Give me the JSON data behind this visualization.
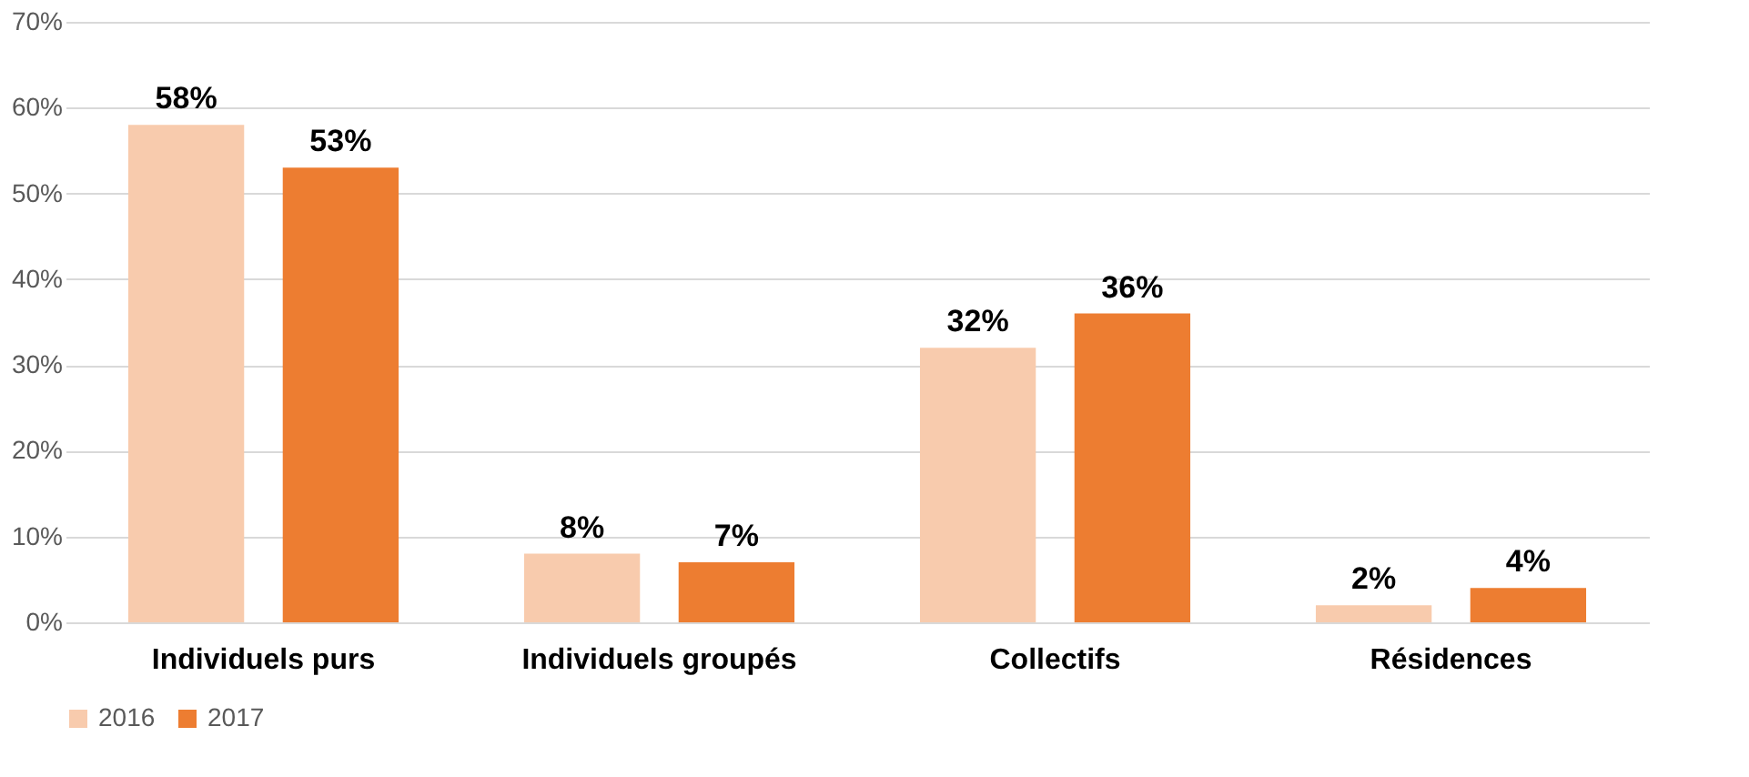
{
  "chart_data": {
    "type": "bar",
    "categories": [
      "Individuels purs",
      "Individuels groupés",
      "Collectifs",
      "Résidences"
    ],
    "series": [
      {
        "name": "2016",
        "color": "#f8cbad",
        "values": [
          58,
          8,
          32,
          2
        ]
      },
      {
        "name": "2017",
        "color": "#ed7d31",
        "values": [
          53,
          7,
          36,
          4
        ]
      }
    ],
    "ylim": [
      0,
      70
    ],
    "yticks": [
      {
        "value": 0,
        "label": "0%"
      },
      {
        "value": 10,
        "label": "10%"
      },
      {
        "value": 20,
        "label": "20%"
      },
      {
        "value": 30,
        "label": "30%"
      },
      {
        "value": 40,
        "label": "40%"
      },
      {
        "value": 50,
        "label": "50%"
      },
      {
        "value": 60,
        "label": "60%"
      },
      {
        "value": 70,
        "label": "70%"
      }
    ],
    "value_labels": [
      [
        "58%",
        "8%",
        "32%",
        "2%"
      ],
      [
        "53%",
        "7%",
        "36%",
        "4%"
      ]
    ],
    "grid": "y",
    "legend": "bottom"
  }
}
